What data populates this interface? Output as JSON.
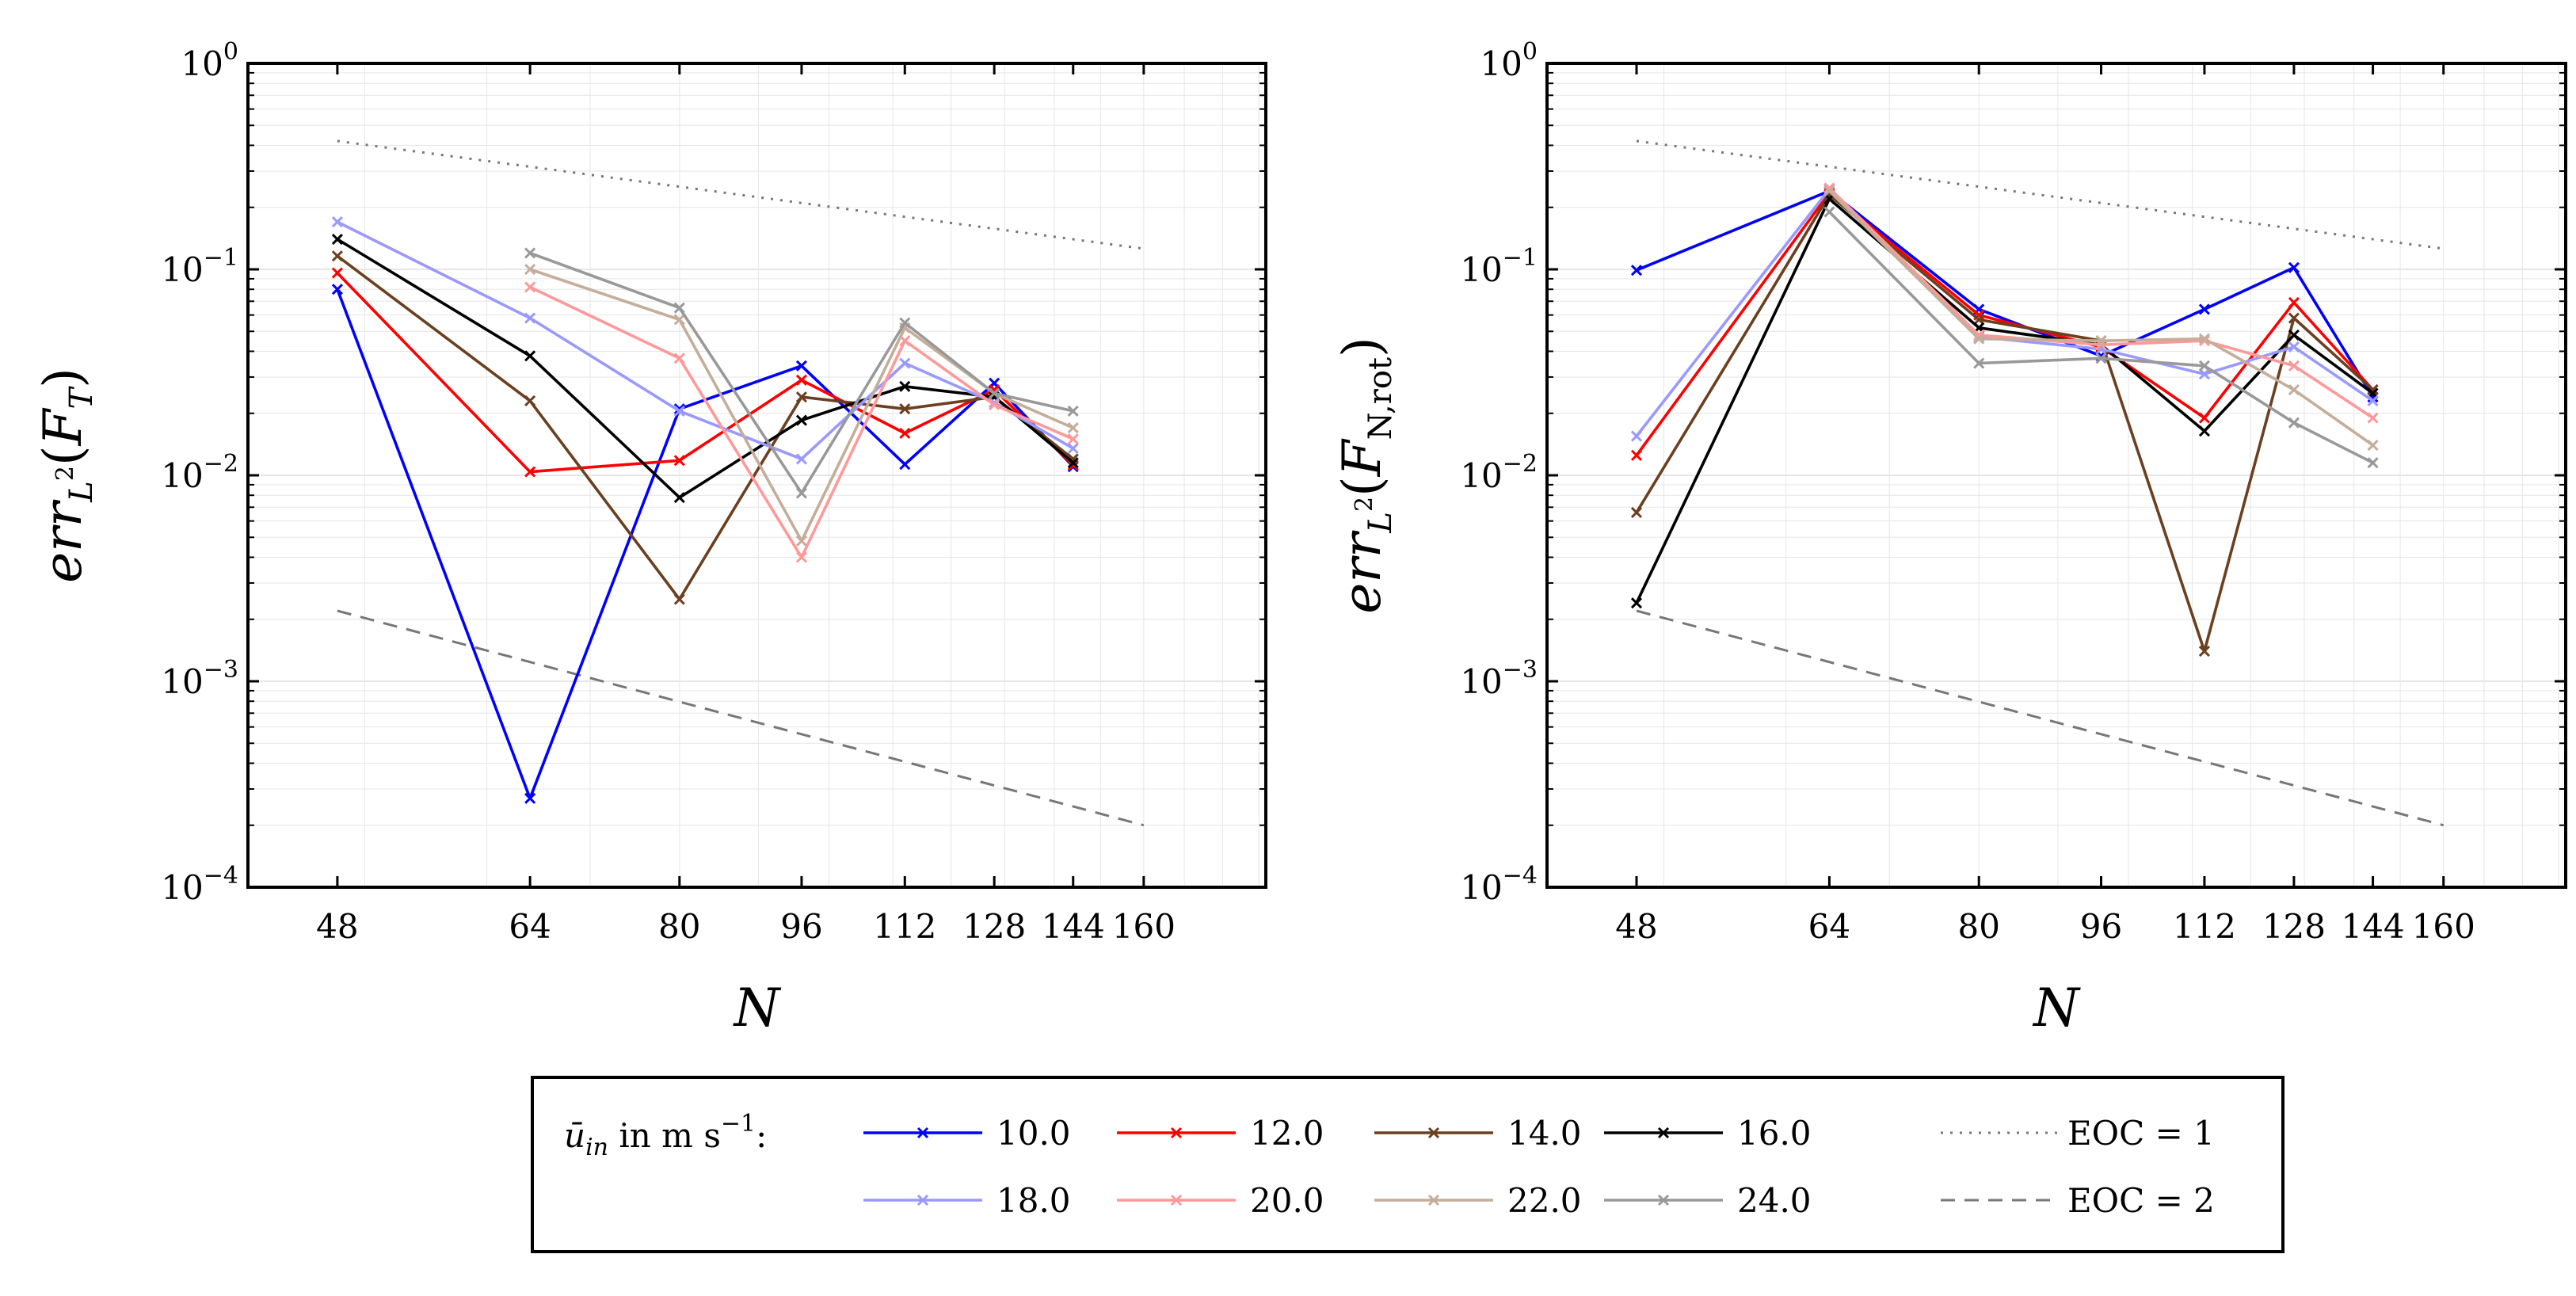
{
  "chart_data": [
    {
      "type": "line",
      "id": "left",
      "y_label": {
        "main": "err",
        "sub": "L",
        "sup": "2",
        "arg_base": "F",
        "arg_sub": "T"
      },
      "xlabel": "N",
      "x_scale": "log",
      "y_scale": "log",
      "x_ticks": [
        48,
        64,
        80,
        96,
        112,
        128,
        144,
        160
      ],
      "y_ticks": [
        {
          "base": "10",
          "exp": "0"
        },
        {
          "base": "10",
          "exp": "−1"
        },
        {
          "base": "10",
          "exp": "−2"
        },
        {
          "base": "10",
          "exp": "−3"
        },
        {
          "base": "10",
          "exp": "−4"
        }
      ],
      "xlim": [
        42,
        192
      ],
      "ylim": [
        0.0001,
        1
      ],
      "series": [
        {
          "name": "10.0",
          "color": "#0000ff",
          "points": [
            [
              48,
              0.08
            ],
            [
              64,
              0.00027
            ],
            [
              80,
              0.021
            ],
            [
              96,
              0.034
            ],
            [
              112,
              0.0113
            ],
            [
              128,
              0.028
            ],
            [
              144,
              0.011
            ]
          ]
        },
        {
          "name": "12.0",
          "color": "#ff0000",
          "points": [
            [
              48,
              0.096
            ],
            [
              64,
              0.0104
            ],
            [
              80,
              0.0118
            ],
            [
              96,
              0.029
            ],
            [
              112,
              0.016
            ],
            [
              128,
              0.026
            ],
            [
              144,
              0.0112
            ]
          ]
        },
        {
          "name": "14.0",
          "color": "#6b3f1f",
          "points": [
            [
              48,
              0.116
            ],
            [
              64,
              0.023
            ],
            [
              80,
              0.0025
            ],
            [
              96,
              0.024
            ],
            [
              112,
              0.021
            ],
            [
              128,
              0.024
            ],
            [
              144,
              0.012
            ]
          ]
        },
        {
          "name": "16.0",
          "color": "#000000",
          "points": [
            [
              48,
              0.14
            ],
            [
              64,
              0.038
            ],
            [
              80,
              0.0078
            ],
            [
              96,
              0.0185
            ],
            [
              112,
              0.027
            ],
            [
              128,
              0.024
            ],
            [
              144,
              0.0115
            ]
          ]
        },
        {
          "name": "18.0",
          "color": "#9999ff",
          "points": [
            [
              48,
              0.17
            ],
            [
              64,
              0.058
            ],
            [
              80,
              0.0205
            ],
            [
              96,
              0.012
            ],
            [
              112,
              0.035
            ],
            [
              128,
              0.0225
            ],
            [
              144,
              0.0135
            ]
          ]
        },
        {
          "name": "20.0",
          "color": "#ff9999",
          "points": [
            [
              64,
              0.082
            ],
            [
              80,
              0.037
            ],
            [
              96,
              0.004
            ],
            [
              112,
              0.045
            ],
            [
              128,
              0.022
            ],
            [
              144,
              0.015
            ]
          ]
        },
        {
          "name": "22.0",
          "color": "#c4ad99",
          "points": [
            [
              64,
              0.1
            ],
            [
              80,
              0.057
            ],
            [
              96,
              0.0048
            ],
            [
              112,
              0.052
            ],
            [
              128,
              0.025
            ],
            [
              144,
              0.017
            ]
          ]
        },
        {
          "name": "24.0",
          "color": "#999999",
          "points": [
            [
              64,
              0.12
            ],
            [
              80,
              0.065
            ],
            [
              96,
              0.0082
            ],
            [
              112,
              0.055
            ],
            [
              128,
              0.025
            ],
            [
              144,
              0.0205
            ]
          ]
        }
      ],
      "reference_lines": [
        {
          "name": "EOC = 1",
          "style": "dotted",
          "color": "#777777",
          "points": [
            [
              48,
              0.42
            ],
            [
              160,
              0.126
            ]
          ]
        },
        {
          "name": "EOC = 2",
          "style": "dashed",
          "color": "#777777",
          "points": [
            [
              48,
              0.0022
            ],
            [
              160,
              0.0002
            ]
          ]
        }
      ]
    },
    {
      "type": "line",
      "id": "right",
      "y_label": {
        "main": "err",
        "sub": "L",
        "sup": "2",
        "arg_base": "F",
        "arg_sub": "N,rot"
      },
      "xlabel": "N",
      "x_scale": "log",
      "y_scale": "log",
      "x_ticks": [
        48,
        64,
        80,
        96,
        112,
        128,
        144,
        160
      ],
      "y_ticks": [
        {
          "base": "10",
          "exp": "0"
        },
        {
          "base": "10",
          "exp": "−1"
        },
        {
          "base": "10",
          "exp": "−2"
        },
        {
          "base": "10",
          "exp": "−3"
        },
        {
          "base": "10",
          "exp": "−4"
        }
      ],
      "xlim": [
        42,
        192
      ],
      "ylim": [
        0.0001,
        1
      ],
      "series": [
        {
          "name": "10.0",
          "color": "#0000ff",
          "points": [
            [
              48,
              0.099
            ],
            [
              64,
              0.24
            ],
            [
              80,
              0.064
            ],
            [
              96,
              0.038
            ],
            [
              112,
              0.064
            ],
            [
              128,
              0.102
            ],
            [
              144,
              0.024
            ]
          ]
        },
        {
          "name": "12.0",
          "color": "#ff0000",
          "points": [
            [
              48,
              0.0125
            ],
            [
              64,
              0.235
            ],
            [
              80,
              0.06
            ],
            [
              96,
              0.042
            ],
            [
              112,
              0.019
            ],
            [
              128,
              0.069
            ],
            [
              144,
              0.026
            ]
          ]
        },
        {
          "name": "14.0",
          "color": "#6b3f1f",
          "points": [
            [
              48,
              0.0066
            ],
            [
              64,
              0.23
            ],
            [
              80,
              0.057
            ],
            [
              96,
              0.045
            ],
            [
              112,
              0.0014
            ],
            [
              128,
              0.058
            ],
            [
              144,
              0.026
            ]
          ]
        },
        {
          "name": "16.0",
          "color": "#000000",
          "points": [
            [
              48,
              0.0024
            ],
            [
              64,
              0.22
            ],
            [
              80,
              0.052
            ],
            [
              96,
              0.043
            ],
            [
              112,
              0.0164
            ],
            [
              128,
              0.048
            ],
            [
              144,
              0.025
            ]
          ]
        },
        {
          "name": "18.0",
          "color": "#9999ff",
          "points": [
            [
              48,
              0.0155
            ],
            [
              64,
              0.245
            ],
            [
              80,
              0.047
            ],
            [
              96,
              0.041
            ],
            [
              112,
              0.031
            ],
            [
              128,
              0.042
            ],
            [
              144,
              0.023
            ]
          ]
        },
        {
          "name": "20.0",
          "color": "#ff9999",
          "points": [
            [
              64,
              0.248
            ],
            [
              80,
              0.048
            ],
            [
              96,
              0.043
            ],
            [
              112,
              0.045
            ],
            [
              128,
              0.034
            ],
            [
              144,
              0.019
            ]
          ]
        },
        {
          "name": "22.0",
          "color": "#c4ad99",
          "points": [
            [
              64,
              0.24
            ],
            [
              80,
              0.046
            ],
            [
              96,
              0.045
            ],
            [
              112,
              0.046
            ],
            [
              128,
              0.026
            ],
            [
              144,
              0.014
            ]
          ]
        },
        {
          "name": "24.0",
          "color": "#999999",
          "points": [
            [
              64,
              0.19
            ],
            [
              80,
              0.035
            ],
            [
              96,
              0.037
            ],
            [
              112,
              0.034
            ],
            [
              128,
              0.018
            ],
            [
              144,
              0.0115
            ]
          ]
        }
      ],
      "reference_lines": [
        {
          "name": "EOC = 1",
          "style": "dotted",
          "color": "#777777",
          "points": [
            [
              48,
              0.42
            ],
            [
              160,
              0.126
            ]
          ]
        },
        {
          "name": "EOC = 2",
          "style": "dashed",
          "color": "#777777",
          "points": [
            [
              48,
              0.0022
            ],
            [
              160,
              0.0002
            ]
          ]
        }
      ]
    }
  ],
  "legend": {
    "title_main": "ū",
    "title_sub": "in",
    "title_rest": " in m s",
    "title_exp": "−1",
    "title_colon": ":",
    "entries": [
      "10.0",
      "12.0",
      "14.0",
      "16.0",
      "18.0",
      "20.0",
      "22.0",
      "24.0"
    ],
    "reference_entries": [
      "EOC = 1",
      "EOC = 2"
    ]
  }
}
